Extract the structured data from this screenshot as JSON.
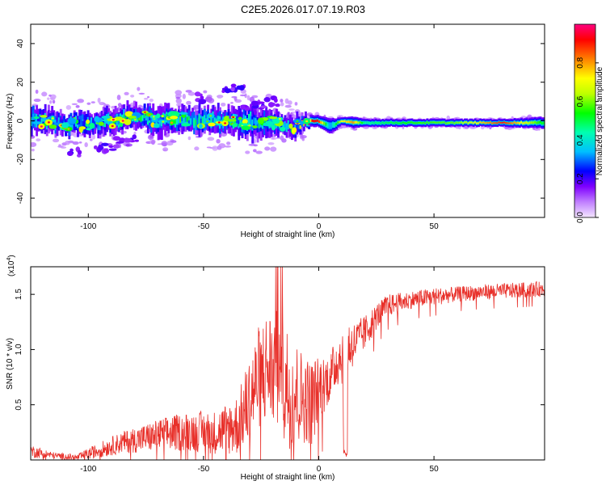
{
  "title": "C2E5.2026.017.07.19.R03",
  "chart_data": [
    {
      "type": "heatmap",
      "xlabel": "Height of straight line (km)",
      "ylabel": "Frequency (Hz)",
      "xlim": [
        -125,
        98
      ],
      "ylim": [
        -50,
        50
      ],
      "xticks": [
        -100,
        -50,
        0,
        50
      ],
      "yticks": [
        -40,
        -20,
        0,
        20,
        40
      ],
      "colorbar": {
        "label": "Normalized spectral amplitude",
        "range": [
          0,
          1
        ],
        "ticks": [
          "0.0",
          "0.2",
          "0.4",
          "0.6",
          "0.8"
        ],
        "colors": [
          "#e6ccff",
          "#7f00ff",
          "#0000ff",
          "#00bfff",
          "#00ffb0",
          "#00ff00",
          "#bfff00",
          "#ffff00",
          "#ff8000",
          "#ff0000",
          "#ff0080"
        ]
      },
      "features": {
        "main_band": {
          "heights_km": [
            -125,
            -110,
            -95,
            -85,
            -80,
            -70,
            -60,
            -50,
            -40,
            -30,
            -20,
            -10,
            -5,
            0,
            5,
            10,
            15,
            20,
            40,
            60,
            80,
            98
          ],
          "center_freq_hz": [
            1,
            -2,
            -1,
            1,
            3,
            0,
            1,
            0,
            0,
            -1,
            -1,
            -3,
            0,
            0,
            -3,
            0,
            -1,
            -1,
            -1,
            -1,
            -1,
            -1
          ],
          "width_hz": [
            7,
            5,
            6,
            6,
            6,
            7,
            6,
            7,
            6,
            8,
            6,
            5,
            3,
            3,
            4,
            2,
            3,
            2,
            2,
            2,
            2,
            3
          ],
          "peak_amplitude": [
            0.35,
            0.3,
            0.35,
            0.55,
            0.5,
            0.4,
            0.5,
            0.4,
            0.45,
            0.4,
            0.45,
            0.3,
            0.95,
            0.9,
            0.3,
            0.7,
            0.8,
            0.45,
            0.55,
            0.6,
            0.9,
            0.5
          ]
        },
        "upper_branch": {
          "heights_km": [
            -50,
            -40,
            -35,
            -30,
            -25,
            -20
          ],
          "freq_hz": [
            12,
            16,
            17,
            6,
            8,
            10
          ]
        },
        "lower_branch": {
          "heights_km": [
            -105,
            -95,
            -90,
            -85,
            -80
          ],
          "freq_hz": [
            -16,
            -14,
            -13,
            -11,
            -10
          ]
        }
      }
    },
    {
      "type": "line",
      "xlabel": "Height of straight line (km)",
      "ylabel": "SNR (10 * v/v)",
      "multiplier_label": "(x10",
      "multiplier_exp": "4",
      "multiplier_close": ")",
      "xlim": [
        -125,
        98
      ],
      "ylim": [
        0,
        17500
      ],
      "xticks": [
        -100,
        -50,
        0,
        50
      ],
      "yticks": [
        5000,
        10000,
        15000
      ],
      "ytick_labels": [
        "0.5",
        "1.0",
        "1.5"
      ],
      "series": [
        {
          "name": "SNR",
          "color": "#e8302a",
          "heights_km": [
            -125,
            -115,
            -105,
            -95,
            -85,
            -75,
            -65,
            -55,
            -45,
            -35,
            -30,
            -25,
            -20,
            -15,
            -10,
            -6,
            -3,
            0,
            5,
            8,
            12,
            15,
            20,
            25,
            30,
            40,
            50,
            60,
            70,
            80,
            90,
            98
          ],
          "mean_snr": [
            800,
            400,
            200,
            900,
            1600,
            2000,
            2400,
            2600,
            2500,
            3200,
            5500,
            8000,
            8500,
            7000,
            6000,
            5500,
            5200,
            6500,
            7500,
            9000,
            10000,
            10500,
            11500,
            13000,
            14000,
            14500,
            14800,
            15000,
            15200,
            15300,
            15400,
            15500
          ],
          "spread": [
            600,
            300,
            300,
            700,
            1000,
            1300,
            1600,
            1800,
            2000,
            2800,
            4000,
            5000,
            5500,
            6000,
            5000,
            4000,
            4000,
            3000,
            2200,
            2400,
            3000,
            2000,
            1600,
            1200,
            1000,
            800,
            800,
            700,
            700,
            700,
            700,
            700
          ]
        }
      ]
    }
  ]
}
